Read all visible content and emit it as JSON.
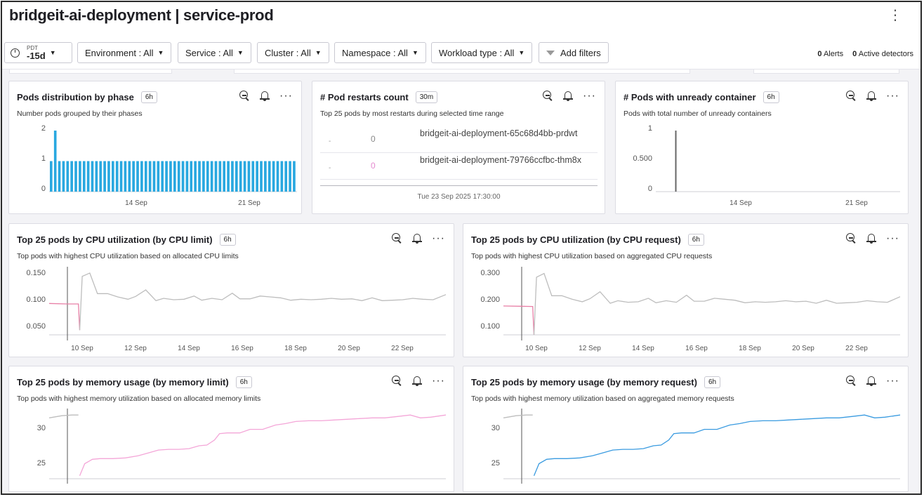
{
  "header": {
    "title": "bridgeit-ai-deployment | service-prod"
  },
  "filters": {
    "time": {
      "tz": "PDT",
      "range": "-15d"
    },
    "items": [
      "Environment : All",
      "Service : All",
      "Cluster : All",
      "Namespace : All",
      "Workload type : All"
    ],
    "add_filters": "Add filters"
  },
  "status": {
    "alerts_count": "0",
    "alerts_label": "Alerts",
    "detectors_count": "0",
    "detectors_label": "Active detectors"
  },
  "panels": {
    "phase": {
      "title": "Pods distribution by phase",
      "badge": "6h",
      "desc": "Number pods grouped by their phases",
      "yticks": [
        "0",
        "1",
        "2"
      ],
      "xticks": [
        "14 Sep",
        "21 Sep"
      ]
    },
    "restarts": {
      "title": "# Pod restarts count",
      "badge": "30m",
      "desc": "Top 25 pods by most restarts during selected time range",
      "rows": [
        {
          "dash": "-",
          "count": "0",
          "pod": "bridgeit-ai-deployment-65c68d4bb-prdwt",
          "count_color": "#888888"
        },
        {
          "dash": "-",
          "count": "0",
          "pod": "bridgeit-ai-deployment-79766ccfbc-thm8x",
          "count_color": "#e58bd0"
        }
      ],
      "footer": "Tue 23 Sep 2025 17:30:00"
    },
    "unready": {
      "title": "# Pods with unready container",
      "badge": "6h",
      "desc": "Pods with total number of unready containers",
      "yticks": [
        "0",
        "0.500",
        "1"
      ],
      "xticks": [
        "14 Sep",
        "21 Sep"
      ]
    },
    "cpu_limit": {
      "title": "Top 25 pods by CPU utilization (by CPU limit)",
      "badge": "6h",
      "desc": "Top pods with highest CPU utilization based on allocated CPU limits",
      "yticks": [
        "0.050",
        "0.100",
        "0.150"
      ],
      "xticks": [
        "10 Sep",
        "12 Sep",
        "14 Sep",
        "16 Sep",
        "18 Sep",
        "20 Sep",
        "22 Sep"
      ]
    },
    "cpu_request": {
      "title": "Top 25 pods by CPU utilization (by CPU request)",
      "badge": "6h",
      "desc": "Top pods with highest CPU utilization based on aggregated CPU requests",
      "yticks": [
        "0.100",
        "0.200",
        "0.300"
      ],
      "xticks": [
        "10 Sep",
        "12 Sep",
        "14 Sep",
        "16 Sep",
        "18 Sep",
        "20 Sep",
        "22 Sep"
      ]
    },
    "mem_limit": {
      "title": "Top 25 pods by memory usage (by memory limit)",
      "badge": "6h",
      "desc": "Top pods with highest memory utilization based on allocated memory limits",
      "yticks": [
        "25",
        "30"
      ]
    },
    "mem_request": {
      "title": "Top 25 pods by memory usage (by memory request)",
      "badge": "6h",
      "desc": "Top pods with highest memory utilization based on aggregated memory requests",
      "yticks": [
        "25",
        "30"
      ]
    }
  },
  "chart_data": [
    {
      "type": "bar",
      "title": "Pods distribution by phase",
      "x_range": [
        "8 Sep",
        "23 Sep"
      ],
      "ylim": [
        0,
        2
      ],
      "values": [
        1,
        2,
        1,
        1,
        1,
        1,
        1,
        1,
        1,
        1,
        1,
        1,
        1,
        1,
        1,
        1,
        1,
        1,
        1,
        1,
        1,
        1,
        1,
        1,
        1,
        1,
        1,
        1,
        1,
        1,
        1,
        1,
        1,
        1,
        1,
        1,
        1,
        1,
        1,
        1,
        1,
        1,
        1,
        1,
        1,
        1,
        1,
        1,
        1,
        1,
        1,
        1,
        1,
        1,
        1,
        1,
        1,
        1,
        1,
        1
      ],
      "color": "#29a8e0"
    },
    {
      "type": "bar",
      "title": "# Pods with unready container",
      "ylim": [
        0,
        1
      ],
      "spike_day": 9.5,
      "spike_value": 1,
      "day_range": [
        8.3,
        24
      ],
      "color": "#666666"
    },
    {
      "type": "line",
      "title": "Top 25 pods by CPU utilization (by CPU limit)",
      "ylim": [
        0.02,
        0.17
      ],
      "xlim": [
        8.3,
        23.9
      ],
      "series": [
        {
          "color": "#e87fa6",
          "x": [
            8.3,
            9.0,
            9.45,
            9.5
          ],
          "y": [
            0.087,
            0.086,
            0.086,
            0.03
          ]
        },
        {
          "color": "#bdbdbd",
          "x": [
            9.5,
            9.6,
            9.9,
            10.2,
            10.6,
            11.0,
            11.4,
            11.7,
            12.1,
            12.5,
            12.8,
            13.2,
            13.6,
            14.0,
            14.3,
            14.7,
            15.1,
            15.5,
            15.8,
            16.2,
            16.6,
            17.0,
            17.4,
            17.8,
            18.2,
            18.6,
            19.0,
            19.4,
            19.8,
            20.2,
            20.6,
            21.0,
            21.4,
            21.8,
            22.2,
            22.6,
            23.0,
            23.4,
            23.9
          ],
          "y": [
            0.03,
            0.145,
            0.152,
            0.108,
            0.108,
            0.101,
            0.096,
            0.102,
            0.116,
            0.093,
            0.098,
            0.095,
            0.096,
            0.103,
            0.094,
            0.098,
            0.095,
            0.109,
            0.097,
            0.097,
            0.103,
            0.101,
            0.099,
            0.094,
            0.096,
            0.095,
            0.096,
            0.098,
            0.096,
            0.097,
            0.093,
            0.099,
            0.093,
            0.094,
            0.095,
            0.098,
            0.096,
            0.095,
            0.106
          ]
        }
      ]
    },
    {
      "type": "line",
      "title": "Top 25 pods by CPU utilization (by CPU request)",
      "ylim": [
        0.06,
        0.34
      ],
      "xlim": [
        8.3,
        23.9
      ],
      "series": [
        {
          "color": "#e87fa6",
          "x": [
            8.3,
            9.0,
            9.45,
            9.5
          ],
          "y": [
            0.175,
            0.174,
            0.173,
            0.06
          ]
        },
        {
          "color": "#bdbdbd",
          "x": [
            9.5,
            9.6,
            9.9,
            10.2,
            10.6,
            11.0,
            11.4,
            11.7,
            12.1,
            12.5,
            12.8,
            13.2,
            13.6,
            14.0,
            14.3,
            14.7,
            15.1,
            15.5,
            15.8,
            16.2,
            16.6,
            17.0,
            17.4,
            17.8,
            18.2,
            18.6,
            19.0,
            19.4,
            19.8,
            20.2,
            20.6,
            21.0,
            21.4,
            21.8,
            22.2,
            22.6,
            23.0,
            23.4,
            23.9
          ],
          "y": [
            0.06,
            0.29,
            0.305,
            0.216,
            0.216,
            0.202,
            0.192,
            0.204,
            0.232,
            0.186,
            0.196,
            0.19,
            0.192,
            0.206,
            0.188,
            0.196,
            0.19,
            0.218,
            0.194,
            0.194,
            0.206,
            0.202,
            0.198,
            0.188,
            0.192,
            0.19,
            0.192,
            0.196,
            0.192,
            0.194,
            0.186,
            0.198,
            0.186,
            0.188,
            0.19,
            0.196,
            0.192,
            0.19,
            0.212
          ]
        }
      ]
    },
    {
      "type": "line",
      "title": "Top 25 pods by memory usage (by memory limit)",
      "ylim": [
        22,
        33
      ],
      "xlim": [
        8.3,
        23.9
      ],
      "series": [
        {
          "color": "#bdbdbd",
          "x": [
            8.3,
            8.8,
            9.2,
            9.45
          ],
          "y": [
            31.4,
            31.7,
            31.8,
            31.8
          ]
        },
        {
          "color": "#f4a6d8",
          "x": [
            9.5,
            9.7,
            10.0,
            10.3,
            10.8,
            11.3,
            11.8,
            12.2,
            12.6,
            13.0,
            13.4,
            13.8,
            14.2,
            14.5,
            14.8,
            15.0,
            15.3,
            15.8,
            16.2,
            16.7,
            17.2,
            17.6,
            18.0,
            18.5,
            19.0,
            19.5,
            20.0,
            20.5,
            21.0,
            21.5,
            22.0,
            22.5,
            22.9,
            23.3,
            23.9
          ],
          "y": [
            23.3,
            25.0,
            25.6,
            25.7,
            25.7,
            25.8,
            26.1,
            26.5,
            26.9,
            27.0,
            27.0,
            27.1,
            27.5,
            27.6,
            28.3,
            29.2,
            29.3,
            29.3,
            29.8,
            29.8,
            30.4,
            30.6,
            30.9,
            31.0,
            31.0,
            31.1,
            31.2,
            31.3,
            31.4,
            31.4,
            31.6,
            31.8,
            31.4,
            31.5,
            31.8
          ]
        }
      ]
    },
    {
      "type": "line",
      "title": "Top 25 pods by memory usage (by memory request)",
      "ylim": [
        22,
        33
      ],
      "xlim": [
        8.3,
        23.9
      ],
      "series": [
        {
          "color": "#bdbdbd",
          "x": [
            8.3,
            8.8,
            9.2,
            9.45
          ],
          "y": [
            31.4,
            31.7,
            31.8,
            31.8
          ]
        },
        {
          "color": "#3a9be0",
          "x": [
            9.5,
            9.7,
            10.0,
            10.3,
            10.8,
            11.3,
            11.8,
            12.2,
            12.6,
            13.0,
            13.4,
            13.8,
            14.2,
            14.5,
            14.8,
            15.0,
            15.3,
            15.8,
            16.2,
            16.7,
            17.2,
            17.6,
            18.0,
            18.5,
            19.0,
            19.5,
            20.0,
            20.5,
            21.0,
            21.5,
            22.0,
            22.5,
            22.9,
            23.3,
            23.9
          ],
          "y": [
            23.3,
            25.0,
            25.6,
            25.7,
            25.7,
            25.8,
            26.1,
            26.5,
            26.9,
            27.0,
            27.0,
            27.1,
            27.5,
            27.6,
            28.3,
            29.2,
            29.3,
            29.3,
            29.8,
            29.8,
            30.4,
            30.6,
            30.9,
            31.0,
            31.0,
            31.1,
            31.2,
            31.3,
            31.4,
            31.4,
            31.6,
            31.8,
            31.4,
            31.5,
            31.8
          ]
        }
      ]
    }
  ]
}
